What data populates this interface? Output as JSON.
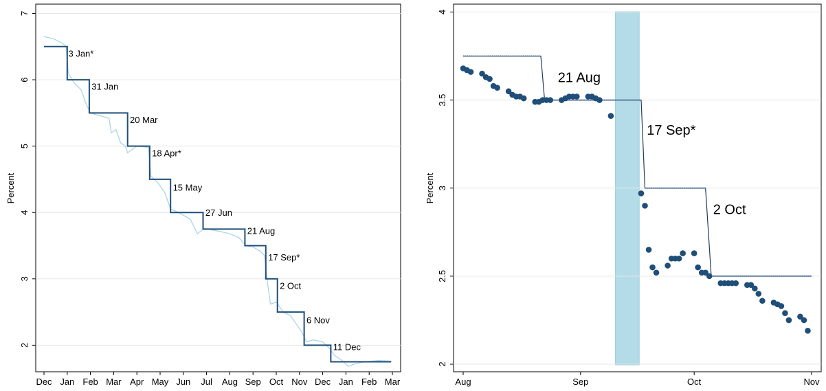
{
  "chart_data": [
    {
      "type": "line",
      "ylabel": "Percent",
      "ylim": [
        1.6,
        7
      ],
      "yticks": [
        2,
        3,
        4,
        5,
        6,
        7
      ],
      "x_tick_labels": [
        "Dec",
        "Jan",
        "Feb",
        "Mar",
        "Apr",
        "May",
        "Jun",
        "Jul",
        "Aug",
        "Sep",
        "Oct",
        "Nov",
        "Dec",
        "Jan",
        "Feb",
        "Mar"
      ],
      "grid": "horizontal",
      "colors": {
        "step": "#1f4e79",
        "market": "#a8d5e6"
      },
      "series": [
        {
          "style": "step",
          "points": [
            [
              0.0,
              6.5
            ],
            [
              1.0,
              6.5
            ],
            [
              1.0,
              6.0
            ],
            [
              1.95,
              6.0
            ],
            [
              1.95,
              5.5
            ],
            [
              3.6,
              5.5
            ],
            [
              3.6,
              5.0
            ],
            [
              4.55,
              5.0
            ],
            [
              4.55,
              4.5
            ],
            [
              5.45,
              4.5
            ],
            [
              5.45,
              4.0
            ],
            [
              6.85,
              4.0
            ],
            [
              6.85,
              3.75
            ],
            [
              8.65,
              3.75
            ],
            [
              8.65,
              3.5
            ],
            [
              9.55,
              3.5
            ],
            [
              9.55,
              3.0
            ],
            [
              10.05,
              3.0
            ],
            [
              10.05,
              2.5
            ],
            [
              11.2,
              2.5
            ],
            [
              11.2,
              2.0
            ],
            [
              12.35,
              2.0
            ],
            [
              12.35,
              1.75
            ],
            [
              14.95,
              1.75
            ]
          ]
        },
        {
          "style": "line",
          "points": [
            [
              0.0,
              6.65
            ],
            [
              0.4,
              6.62
            ],
            [
              0.8,
              6.55
            ],
            [
              0.95,
              6.5
            ],
            [
              1.05,
              6.1
            ],
            [
              1.3,
              5.95
            ],
            [
              1.6,
              5.85
            ],
            [
              1.8,
              5.65
            ],
            [
              2.0,
              5.5
            ],
            [
              2.5,
              5.45
            ],
            [
              2.8,
              5.42
            ],
            [
              2.9,
              5.2
            ],
            [
              3.1,
              5.25
            ],
            [
              3.3,
              5.05
            ],
            [
              3.5,
              5.0
            ],
            [
              3.6,
              4.9
            ],
            [
              3.8,
              4.95
            ],
            [
              4.0,
              5.0
            ],
            [
              4.5,
              4.98
            ],
            [
              4.6,
              4.55
            ],
            [
              4.9,
              4.45
            ],
            [
              5.2,
              4.3
            ],
            [
              5.45,
              4.05
            ],
            [
              5.8,
              4.0
            ],
            [
              6.3,
              3.9
            ],
            [
              6.6,
              3.68
            ],
            [
              6.9,
              3.76
            ],
            [
              7.5,
              3.72
            ],
            [
              8.0,
              3.68
            ],
            [
              8.4,
              3.62
            ],
            [
              8.7,
              3.5
            ],
            [
              9.0,
              3.48
            ],
            [
              9.3,
              3.42
            ],
            [
              9.5,
              3.35
            ],
            [
              9.6,
              3.0
            ],
            [
              9.75,
              2.62
            ],
            [
              10.0,
              2.65
            ],
            [
              10.3,
              2.5
            ],
            [
              10.6,
              2.45
            ],
            [
              10.9,
              2.3
            ],
            [
              11.1,
              2.2
            ],
            [
              11.3,
              2.05
            ],
            [
              11.6,
              2.08
            ],
            [
              12.0,
              2.05
            ],
            [
              12.3,
              1.95
            ],
            [
              12.5,
              1.85
            ],
            [
              12.8,
              1.78
            ],
            [
              13.1,
              1.68
            ],
            [
              13.4,
              1.72
            ],
            [
              13.8,
              1.75
            ],
            [
              14.4,
              1.77
            ],
            [
              14.95,
              1.76
            ]
          ]
        }
      ],
      "annotations": [
        {
          "text": "3 Jan*",
          "x": 1.05,
          "y": 6.4
        },
        {
          "text": "31 Jan",
          "x": 2.05,
          "y": 5.9
        },
        {
          "text": "20 Mar",
          "x": 3.7,
          "y": 5.4
        },
        {
          "text": "18 Apr*",
          "x": 4.65,
          "y": 4.9
        },
        {
          "text": "15 May",
          "x": 5.55,
          "y": 4.38
        },
        {
          "text": "27 Jun",
          "x": 6.95,
          "y": 4.0
        },
        {
          "text": "21 Aug",
          "x": 8.75,
          "y": 3.73
        },
        {
          "text": "17 Sep*",
          "x": 9.65,
          "y": 3.33
        },
        {
          "text": "2 Oct",
          "x": 10.15,
          "y": 2.9
        },
        {
          "text": "6 Nov",
          "x": 11.3,
          "y": 2.38
        },
        {
          "text": "11 Dec",
          "x": 12.45,
          "y": 1.98
        }
      ]
    },
    {
      "type": "scatter",
      "ylabel": "Percent",
      "ylim": [
        2,
        4
      ],
      "yticks": [
        "2",
        "2.5",
        "3",
        "3.5",
        "4"
      ],
      "x_tick_labels": [
        "Aug",
        "Sep",
        "Oct",
        "Nov"
      ],
      "grid": "horizontal",
      "colors": {
        "line": "#1c3a5e",
        "points": "#1f4e79",
        "shade": "#b4dce8"
      },
      "shaded_region": [
        40.2,
        46.5
      ],
      "policy_rate_step": {
        "points": [
          [
            0,
            3.75
          ],
          [
            20.5,
            3.75
          ],
          [
            21.5,
            3.5
          ],
          [
            47.0,
            3.5
          ],
          [
            48.0,
            3.0
          ],
          [
            64.0,
            3.0
          ],
          [
            65.5,
            2.5
          ],
          [
            92.0,
            2.5
          ]
        ]
      },
      "points": [
        [
          0,
          3.68
        ],
        [
          1,
          3.67
        ],
        [
          2,
          3.66
        ],
        [
          5,
          3.65
        ],
        [
          6,
          3.63
        ],
        [
          7,
          3.62
        ],
        [
          8,
          3.58
        ],
        [
          9,
          3.57
        ],
        [
          12,
          3.55
        ],
        [
          13,
          3.53
        ],
        [
          14,
          3.52
        ],
        [
          15,
          3.52
        ],
        [
          16,
          3.51
        ],
        [
          19,
          3.49
        ],
        [
          20,
          3.49
        ],
        [
          21,
          3.5
        ],
        [
          22,
          3.5
        ],
        [
          23,
          3.5
        ],
        [
          26,
          3.5
        ],
        [
          27,
          3.51
        ],
        [
          28,
          3.52
        ],
        [
          29,
          3.52
        ],
        [
          30,
          3.52
        ],
        [
          33,
          3.52
        ],
        [
          34,
          3.52
        ],
        [
          35,
          3.51
        ],
        [
          36,
          3.5
        ],
        [
          39,
          3.41
        ],
        [
          47,
          2.97
        ],
        [
          48,
          2.9
        ],
        [
          49,
          2.65
        ],
        [
          50,
          2.55
        ],
        [
          51,
          2.52
        ],
        [
          54,
          2.56
        ],
        [
          55,
          2.6
        ],
        [
          56,
          2.6
        ],
        [
          57,
          2.6
        ],
        [
          58,
          2.63
        ],
        [
          61,
          2.63
        ],
        [
          62,
          2.55
        ],
        [
          63,
          2.52
        ],
        [
          64,
          2.52
        ],
        [
          65,
          2.5
        ],
        [
          68,
          2.46
        ],
        [
          69,
          2.46
        ],
        [
          70,
          2.46
        ],
        [
          71,
          2.46
        ],
        [
          72,
          2.46
        ],
        [
          75,
          2.45
        ],
        [
          76,
          2.45
        ],
        [
          77,
          2.43
        ],
        [
          78,
          2.4
        ],
        [
          79,
          2.36
        ],
        [
          82,
          2.35
        ],
        [
          83,
          2.34
        ],
        [
          84,
          2.33
        ],
        [
          85,
          2.29
        ],
        [
          86,
          2.25
        ],
        [
          89,
          2.27
        ],
        [
          90,
          2.25
        ],
        [
          91,
          2.19
        ]
      ],
      "annotations": [
        {
          "text": "21 Aug",
          "x": 25,
          "y": 3.63
        },
        {
          "text": "17 Sep*",
          "x": 48.5,
          "y": 3.33
        },
        {
          "text": "2 Oct",
          "x": 66,
          "y": 2.88
        }
      ]
    }
  ]
}
